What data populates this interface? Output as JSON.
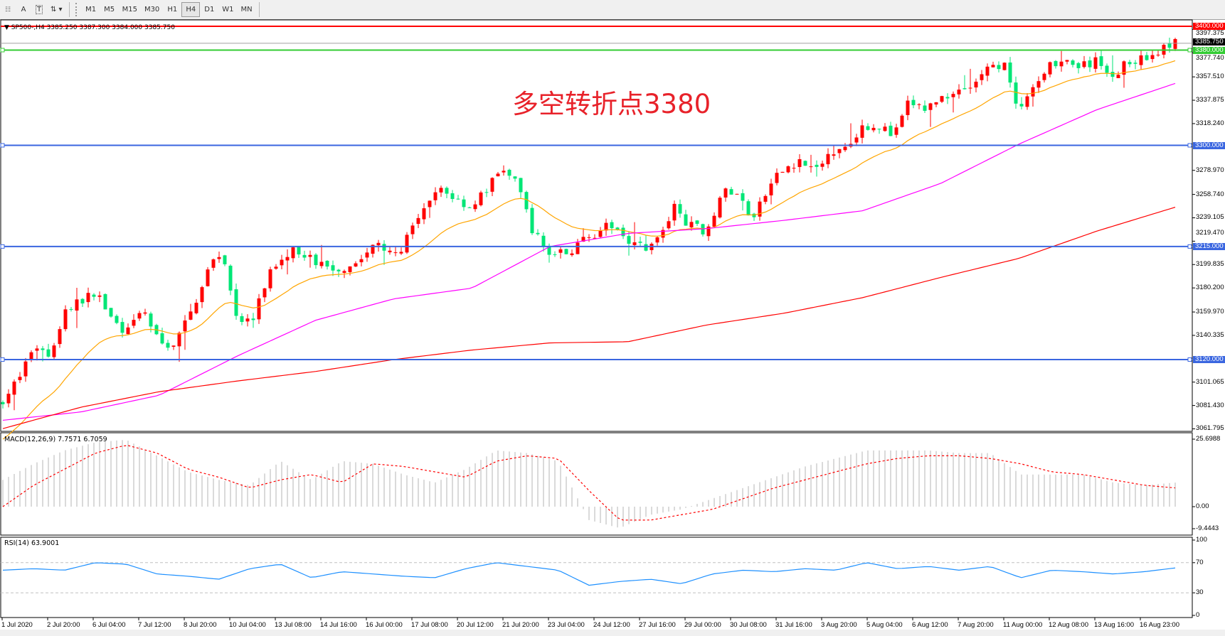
{
  "toolbar": {
    "tools": [
      {
        "icon": "grid-lines-icon",
        "label": ""
      },
      {
        "icon": "text-icon",
        "label": "A"
      },
      {
        "icon": "text-label-icon",
        "label": "T"
      },
      {
        "icon": "arrows-dropdown-icon",
        "label": ""
      }
    ],
    "timeframes": [
      "M1",
      "M5",
      "M15",
      "M30",
      "H1",
      "H4",
      "D1",
      "W1",
      "MN"
    ],
    "active_timeframe": "H4"
  },
  "chart": {
    "header": "SP500-,H4  3385.250 3387.300 3384.000 3385.750",
    "annotation": "多空转折点3380",
    "colors": {
      "bull": "#ff0000",
      "bear": "#00e676",
      "ma_fast": "#ffa500",
      "ma_mid": "#ff00ff",
      "ma_slow": "#ff0000"
    },
    "price_axis_labels": [
      "3397.375",
      "3377.740",
      "3357.510",
      "3337.875",
      "3318.240",
      "3278.970",
      "3258.740",
      "3239.105",
      "3219.470",
      "3199.835",
      "3180.200",
      "3159.970",
      "3140.335",
      "3101.065",
      "3081.430",
      "3061.795"
    ],
    "horizontal_lines": [
      {
        "price": 3400,
        "label": "3400.000",
        "color": "#ff0000"
      },
      {
        "price": 3380,
        "label": "3380.000",
        "color": "#33cc33"
      },
      {
        "price": 3300,
        "label": "3300.000",
        "color": "#3a66e0"
      },
      {
        "price": 3215,
        "label": "3215.000",
        "color": "#3a66e0"
      },
      {
        "price": 3120,
        "label": "3120.000",
        "color": "#3a66e0"
      }
    ],
    "current_price": {
      "price": 3385.75,
      "label": "3385.750"
    },
    "time_labels": [
      "1 Jul 2020",
      "2 Jul 20:00",
      "6 Jul 04:00",
      "7 Jul 12:00",
      "8 Jul 20:00",
      "10 Jul 04:00",
      "13 Jul 08:00",
      "14 Jul 16:00",
      "16 Jul 00:00",
      "17 Jul 08:00",
      "20 Jul 12:00",
      "21 Jul 20:00",
      "23 Jul 04:00",
      "24 Jul 12:00",
      "27 Jul 16:00",
      "29 Jul 00:00",
      "30 Jul 08:00",
      "31 Jul 16:00",
      "3 Aug 20:00",
      "5 Aug 04:00",
      "6 Aug 12:00",
      "7 Aug 20:00",
      "11 Aug 00:00",
      "12 Aug 08:00",
      "13 Aug 16:00",
      "16 Aug 23:00"
    ]
  },
  "macd": {
    "title": "MACD(12,26,9) 7.7571 6.7059",
    "axis_labels": [
      "25.6988",
      "0.00",
      "-9.4443"
    ]
  },
  "rsi": {
    "title": "RSI(14) 63.9001",
    "axis_labels": [
      "100",
      "70",
      "30",
      "0"
    ],
    "levels": [
      70,
      30
    ]
  },
  "chart_data": {
    "type": "candlestick",
    "symbol": "SP500-",
    "timeframe": "H4",
    "close_path": [
      3087,
      3103,
      3133,
      3123,
      3162,
      3169,
      3176,
      3153,
      3143,
      3162,
      3133,
      3133,
      3159,
      3192,
      3212,
      3153,
      3153,
      3192,
      3209,
      3212,
      3202,
      3195,
      3199,
      3205,
      3218,
      3205,
      3225,
      3245,
      3264,
      3255,
      3248,
      3264,
      3281,
      3264,
      3225,
      3209,
      3209,
      3218,
      3228,
      3232,
      3222,
      3215,
      3222,
      3248,
      3232,
      3228,
      3261,
      3258,
      3238,
      3264,
      3281,
      3287,
      3278,
      3294,
      3301,
      3317,
      3317,
      3307,
      3337,
      3330,
      3340,
      3347,
      3350,
      3363,
      3370,
      3324,
      3350,
      3370,
      3370,
      3366,
      3370,
      3360,
      3370,
      3373,
      3380,
      3386
    ],
    "ma_mid_path": [
      3069,
      3076,
      3090,
      3123,
      3153,
      3171,
      3180,
      3215,
      3226,
      3230,
      3237,
      3245,
      3268,
      3301,
      3330,
      3352
    ],
    "ma_slow_path": [
      3062,
      3080,
      3093,
      3102,
      3110,
      3120,
      3128,
      3134,
      3135,
      3149,
      3159,
      3172,
      3189,
      3205,
      3228,
      3248
    ],
    "macd_histogram": [
      10,
      16,
      21,
      24,
      25,
      19,
      13,
      10,
      8,
      17,
      10,
      17,
      16,
      12,
      9,
      14,
      21,
      20,
      17,
      -5,
      -8,
      -3,
      -1,
      3,
      7,
      11,
      15,
      18,
      21,
      21,
      21,
      20,
      20,
      12,
      12,
      12,
      9,
      8,
      9
    ],
    "macd_signal": [
      0,
      8,
      14,
      20,
      23,
      20,
      14,
      11,
      7,
      10,
      12,
      9,
      16,
      15,
      13,
      11,
      17,
      19,
      18,
      6,
      -5,
      -5,
      -3,
      -1,
      3,
      7,
      10,
      13,
      16,
      18,
      19,
      19,
      18,
      16,
      13,
      12,
      10,
      8,
      7
    ],
    "rsi": [
      60,
      62,
      60,
      70,
      68,
      55,
      52,
      48,
      62,
      68,
      50,
      58,
      55,
      52,
      50,
      62,
      70,
      65,
      60,
      40,
      45,
      48,
      42,
      55,
      60,
      58,
      62,
      60,
      70,
      62,
      65,
      60,
      65,
      50,
      60,
      58,
      55,
      58,
      63
    ]
  }
}
